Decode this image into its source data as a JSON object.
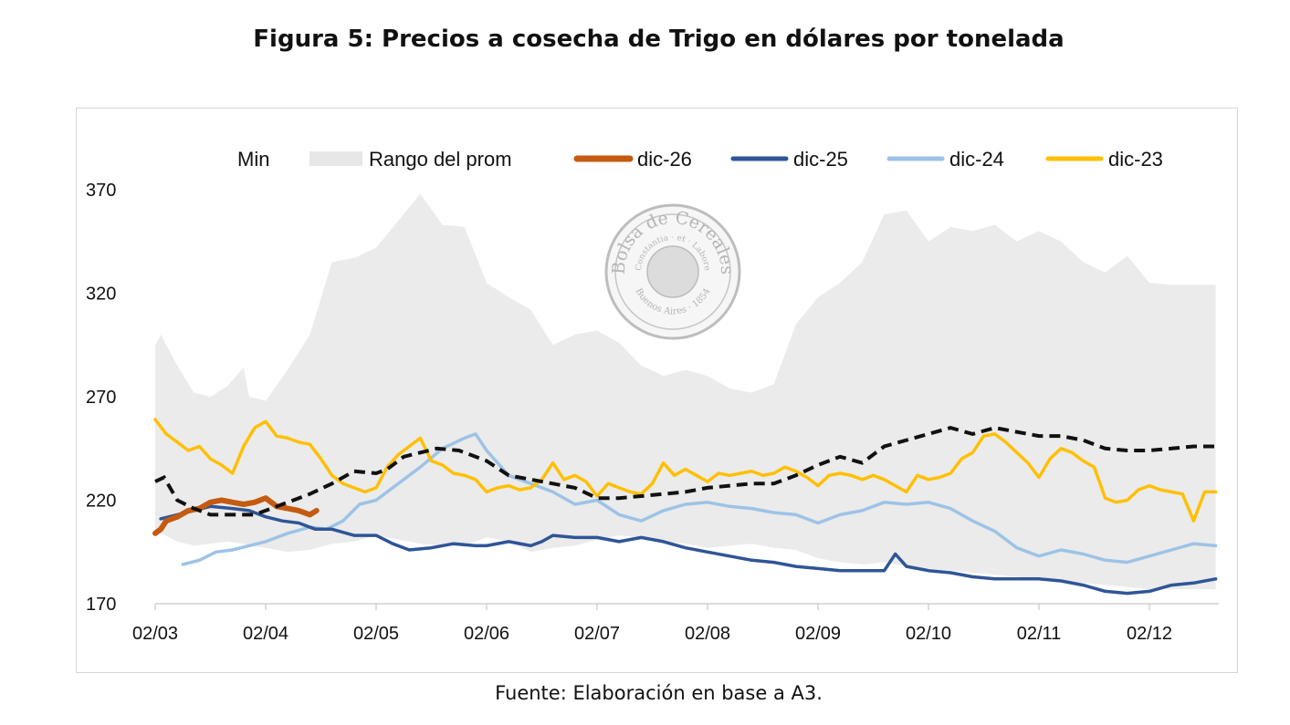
{
  "title": "Figura 5: Precios a cosecha de Trigo en dólares por tonelada",
  "source": "Fuente: Elaboración en base a A3.",
  "watermark": {
    "outer": "Bolsa de Cereales",
    "inner": "Constantia · et · Labore",
    "bottom": "Buenos Aires · 1854"
  },
  "chart_data": {
    "type": "line",
    "x_ticks": [
      "02/03",
      "02/04",
      "02/05",
      "02/06",
      "02/07",
      "02/08",
      "02/09",
      "02/10",
      "02/11",
      "02/12"
    ],
    "y_ticks": [
      "170",
      "220",
      "270",
      "320",
      "370"
    ],
    "ylim": [
      170,
      370
    ],
    "legend_position": "top",
    "legend": [
      {
        "key": "min",
        "label": "Min",
        "kind": "none",
        "color": "#ffffff"
      },
      {
        "key": "range",
        "label": "Rango del prom",
        "kind": "area",
        "color": "#e7e7e7"
      },
      {
        "key": "d26",
        "label": "dic-26",
        "kind": "line",
        "color": "#c55a11"
      },
      {
        "key": "d25",
        "label": "dic-25",
        "kind": "line",
        "color": "#2f5597"
      },
      {
        "key": "d24",
        "label": "dic-24",
        "kind": "line",
        "color": "#9dc3e6"
      },
      {
        "key": "d23",
        "label": "dic-23",
        "kind": "line",
        "color": "#ffc000"
      }
    ],
    "average_color": "#111111",
    "range_band": {
      "x": [
        0,
        0.05,
        0.2,
        0.35,
        0.5,
        0.65,
        0.8,
        0.85,
        1,
        1.2,
        1.4,
        1.6,
        1.8,
        2,
        2.2,
        2.4,
        2.6,
        2.8,
        3,
        3.2,
        3.4,
        3.6,
        3.8,
        4,
        4.2,
        4.4,
        4.6,
        4.8,
        5,
        5.2,
        5.4,
        5.6,
        5.8,
        6,
        6.2,
        6.4,
        6.6,
        6.8,
        7,
        7.2,
        7.4,
        7.6,
        7.8,
        8,
        8.2,
        8.4,
        8.6,
        8.8,
        9,
        9.2,
        9.4,
        9.6
      ],
      "high": [
        295,
        300,
        285,
        272,
        270,
        275,
        284,
        270,
        268,
        283,
        300,
        335,
        337,
        342,
        355,
        368,
        353,
        352,
        325,
        318,
        312,
        295,
        300,
        302,
        296,
        285,
        280,
        283,
        280,
        274,
        272,
        276,
        305,
        318,
        325,
        335,
        358,
        360,
        345,
        352,
        350,
        353,
        345,
        350,
        345,
        335,
        330,
        338,
        325,
        324,
        324,
        324
      ],
      "low": [
        206,
        204,
        200,
        198,
        199,
        200,
        199,
        198,
        197,
        195,
        196,
        199,
        200,
        203,
        201,
        199,
        198,
        198,
        202,
        200,
        195,
        197,
        198,
        201,
        203,
        202,
        200,
        199,
        197,
        198,
        199,
        197,
        196,
        192,
        190,
        189,
        190,
        188,
        187,
        186,
        185,
        184,
        183,
        182,
        181,
        180,
        179,
        178,
        177,
        177,
        177,
        177
      ]
    },
    "average": {
      "x": [
        0,
        0.08,
        0.2,
        0.35,
        0.5,
        0.7,
        0.9,
        1,
        1.2,
        1.4,
        1.6,
        1.8,
        2,
        2.1,
        2.25,
        2.4,
        2.55,
        2.75,
        3,
        3.2,
        3.4,
        3.6,
        3.8,
        4,
        4.2,
        4.4,
        4.6,
        4.8,
        5,
        5.2,
        5.4,
        5.6,
        5.8,
        6,
        6.2,
        6.4,
        6.6,
        6.8,
        7,
        7.2,
        7.4,
        7.6,
        7.8,
        8,
        8.2,
        8.4,
        8.6,
        8.8,
        9,
        9.2,
        9.4,
        9.6
      ],
      "y": [
        229,
        231,
        220,
        216,
        213,
        213,
        213,
        215,
        219,
        223,
        228,
        234,
        233,
        235,
        241,
        243,
        245,
        244,
        239,
        232,
        230,
        228,
        226,
        221,
        221,
        222,
        223,
        224,
        226,
        227,
        228,
        228,
        232,
        237,
        241,
        238,
        246,
        249,
        252,
        255,
        252,
        255,
        253,
        251,
        251,
        249,
        245,
        244,
        244,
        245,
        246,
        246
      ]
    },
    "series": [
      {
        "key": "d26",
        "name": "dic-26",
        "x": [
          0,
          0.05,
          0.1,
          0.2,
          0.3,
          0.4,
          0.5,
          0.6,
          0.7,
          0.8,
          0.9,
          1.0,
          1.05,
          1.1,
          1.2,
          1.3,
          1.4,
          1.46
        ],
        "y": [
          204,
          206,
          210,
          212,
          215,
          216,
          219,
          220,
          219,
          218,
          219,
          221,
          219,
          217,
          216,
          215,
          213,
          215
        ]
      },
      {
        "key": "d25",
        "name": "dic-25",
        "x": [
          0.05,
          0.2,
          0.35,
          0.5,
          0.7,
          0.85,
          1,
          1.15,
          1.3,
          1.45,
          1.6,
          1.8,
          2,
          2.15,
          2.3,
          2.5,
          2.7,
          2.9,
          3,
          3.2,
          3.4,
          3.5,
          3.6,
          3.8,
          4,
          4.2,
          4.4,
          4.6,
          4.8,
          5,
          5.2,
          5.4,
          5.6,
          5.8,
          6,
          6.2,
          6.4,
          6.6,
          6.7,
          6.8,
          7,
          7.2,
          7.4,
          7.6,
          7.8,
          8,
          8.2,
          8.4,
          8.6,
          8.8,
          9,
          9.2,
          9.4,
          9.6
        ],
        "y": [
          211,
          213,
          215,
          217,
          216,
          215,
          212,
          210,
          209,
          206,
          206,
          203,
          203,
          199,
          196,
          197,
          199,
          198,
          198,
          200,
          198,
          200,
          203,
          202,
          202,
          200,
          202,
          200,
          197,
          195,
          193,
          191,
          190,
          188,
          187,
          186,
          186,
          186,
          194,
          188,
          186,
          185,
          183,
          182,
          182,
          182,
          181,
          179,
          176,
          175,
          176,
          179,
          180,
          182
        ]
      },
      {
        "key": "d24",
        "name": "dic-24",
        "x": [
          0.25,
          0.4,
          0.55,
          0.7,
          0.85,
          1,
          1.2,
          1.4,
          1.55,
          1.7,
          1.85,
          2,
          2.2,
          2.4,
          2.6,
          2.8,
          2.9,
          3,
          3.2,
          3.4,
          3.6,
          3.8,
          4,
          4.2,
          4.4,
          4.6,
          4.8,
          5,
          5.2,
          5.4,
          5.6,
          5.8,
          6,
          6.2,
          6.4,
          6.6,
          6.8,
          7,
          7.2,
          7.4,
          7.6,
          7.8,
          8,
          8.2,
          8.4,
          8.6,
          8.8,
          9,
          9.2,
          9.4,
          9.6
        ],
        "y": [
          189,
          191,
          195,
          196,
          198,
          200,
          204,
          207,
          206,
          210,
          218,
          220,
          228,
          236,
          245,
          250,
          252,
          244,
          232,
          228,
          224,
          218,
          220,
          213,
          210,
          215,
          218,
          219,
          217,
          216,
          214,
          213,
          209,
          213,
          215,
          219,
          218,
          219,
          216,
          210,
          205,
          197,
          193,
          196,
          194,
          191,
          190,
          193,
          196,
          199,
          198
        ]
      },
      {
        "key": "d23",
        "name": "dic-23",
        "x": [
          0,
          0.1,
          0.2,
          0.3,
          0.4,
          0.5,
          0.6,
          0.7,
          0.8,
          0.9,
          1,
          1.1,
          1.2,
          1.3,
          1.4,
          1.5,
          1.6,
          1.7,
          1.8,
          1.9,
          2,
          2.1,
          2.2,
          2.3,
          2.4,
          2.5,
          2.6,
          2.7,
          2.8,
          2.9,
          3,
          3.1,
          3.2,
          3.3,
          3.4,
          3.5,
          3.6,
          3.7,
          3.8,
          3.9,
          4,
          4.1,
          4.2,
          4.3,
          4.4,
          4.5,
          4.6,
          4.7,
          4.8,
          4.9,
          5,
          5.1,
          5.2,
          5.3,
          5.4,
          5.5,
          5.6,
          5.7,
          5.8,
          5.9,
          6,
          6.1,
          6.2,
          6.3,
          6.4,
          6.5,
          6.6,
          6.7,
          6.8,
          6.9,
          7,
          7.1,
          7.2,
          7.3,
          7.4,
          7.5,
          7.6,
          7.7,
          7.8,
          7.9,
          8,
          8.1,
          8.2,
          8.3,
          8.4,
          8.5,
          8.6,
          8.7,
          8.8,
          8.9,
          9,
          9.1,
          9.2,
          9.3,
          9.4,
          9.5,
          9.6
        ],
        "y": [
          259,
          252,
          248,
          244,
          246,
          240,
          237,
          233,
          246,
          255,
          258,
          251,
          250,
          248,
          247,
          240,
          232,
          228,
          226,
          224,
          226,
          236,
          242,
          246,
          250,
          239,
          237,
          233,
          232,
          230,
          224,
          226,
          227,
          225,
          226,
          230,
          238,
          230,
          232,
          229,
          222,
          228,
          226,
          224,
          223,
          228,
          238,
          232,
          235,
          232,
          229,
          233,
          232,
          233,
          234,
          232,
          233,
          236,
          234,
          231,
          227,
          232,
          233,
          232,
          230,
          232,
          230,
          227,
          224,
          232,
          230,
          231,
          233,
          240,
          243,
          251,
          252,
          248,
          243,
          238,
          231,
          240,
          245,
          243,
          239,
          236,
          221,
          219,
          220,
          225,
          227,
          225,
          224,
          223,
          210,
          224,
          224
        ]
      }
    ]
  }
}
